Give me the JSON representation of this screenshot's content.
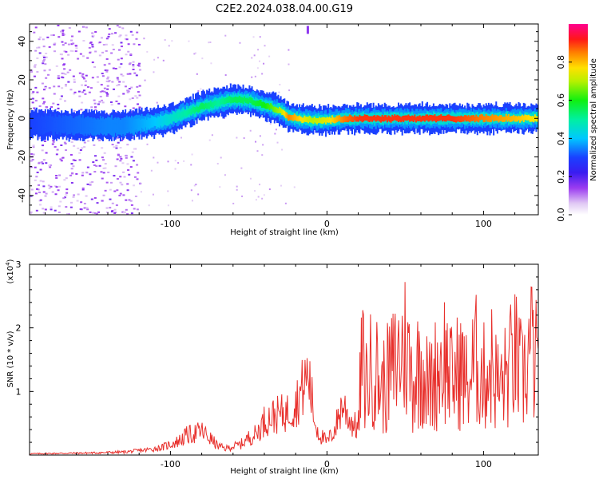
{
  "title": "C2E2.2024.038.04.00.G19",
  "colors": {
    "snr_line": "#e8302c",
    "frame": "#000000"
  },
  "chart_data": [
    {
      "type": "heatmap",
      "title": "C2E2.2024.038.04.00.G19",
      "xlabel": "Height of straight line (km)",
      "ylabel": "Frequency (Hz)",
      "xlim": [
        -190,
        135
      ],
      "ylim": [
        -50,
        49
      ],
      "x_ticks": [
        -100,
        0,
        100
      ],
      "y_ticks": [
        -40,
        -20,
        0,
        20,
        40
      ],
      "grid": false,
      "colorbar": {
        "label": "Normalized spectral amplitude",
        "range": [
          0.0,
          1.0
        ],
        "ticks": [
          "0.0",
          "0.2",
          "0.4",
          "0.6",
          "0.8"
        ],
        "colormap": "rainbow (white-purple-blue-cyan-green-yellow-orange-red-magenta)"
      },
      "ridge": {
        "description": "Doppler frequency ridge versus height",
        "x": [
          -190,
          -140,
          -130,
          -110,
          -100,
          -90,
          -80,
          -70,
          -60,
          -50,
          -40,
          -30,
          -25,
          -20,
          -10,
          0,
          10,
          20,
          40,
          60,
          80,
          100,
          120,
          135
        ],
        "y": [
          -3,
          -4,
          -4,
          -2,
          0,
          3,
          6,
          8,
          10,
          9,
          7,
          4,
          1,
          0,
          -1,
          -1,
          0,
          0,
          0,
          0,
          0,
          0,
          0,
          0
        ],
        "amplitude": [
          0.3,
          0.35,
          0.35,
          0.4,
          0.45,
          0.5,
          0.55,
          0.5,
          0.55,
          0.55,
          0.6,
          0.7,
          0.85,
          0.8,
          0.7,
          0.75,
          0.85,
          0.9,
          0.9,
          0.9,
          0.9,
          0.85,
          0.8,
          0.75
        ]
      },
      "annotations": [
        {
          "x": -13,
          "y": 45,
          "text": ""
        }
      ]
    },
    {
      "type": "line",
      "xlabel": "Height of straight line (km)",
      "ylabel": "SNR (10 * v/v)",
      "y_multiplier_label": "(x10",
      "y_multiplier_exp": "4",
      "xlim": [
        -190,
        135
      ],
      "ylim": [
        0,
        30000
      ],
      "x_ticks": [
        -100,
        0,
        100
      ],
      "y_ticks": [
        1,
        2,
        3
      ],
      "grid": false,
      "series": [
        {
          "x": [
            -190,
            -170,
            -150,
            -130,
            -115,
            -105,
            -100,
            -95,
            -90,
            -85,
            -80,
            -75,
            -70,
            -65,
            -60,
            -55,
            -50,
            -45,
            -40,
            -35,
            -30,
            -25,
            -20,
            -15,
            -12,
            -10,
            -8,
            -5,
            0,
            5,
            10,
            15,
            20,
            22,
            25,
            30,
            35,
            40,
            45,
            50,
            55,
            60,
            65,
            70,
            75,
            80,
            85,
            90,
            95,
            100,
            105,
            110,
            115,
            120,
            125,
            130,
            135
          ],
          "y": [
            300,
            400,
            500,
            700,
            1200,
            1800,
            2500,
            3200,
            4500,
            5000,
            5500,
            4000,
            2200,
            1500,
            2000,
            2500,
            4000,
            5000,
            8000,
            9000,
            9500,
            10000,
            12000,
            16000,
            19000,
            14000,
            8000,
            5000,
            3000,
            6000,
            12000,
            8000,
            6000,
            26000,
            20000,
            25000,
            18000,
            22000,
            26000,
            30000,
            20000,
            26000,
            18000,
            23000,
            27000,
            20000,
            24000,
            19000,
            26000,
            21000,
            25000,
            18000,
            22000,
            27000,
            20000,
            30000,
            23000
          ]
        }
      ]
    }
  ]
}
